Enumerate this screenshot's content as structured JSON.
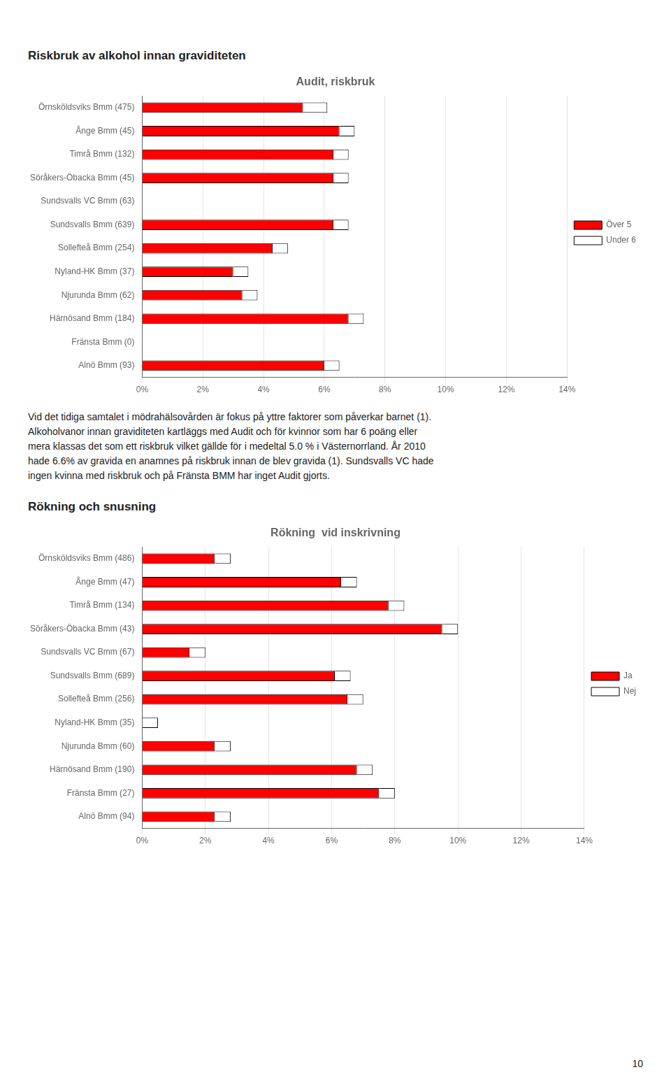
{
  "chart_data": [
    {
      "type": "bar",
      "title": "Audit, riskbruk",
      "orientation": "horizontal",
      "stacked": true,
      "grid": true,
      "legend": "right",
      "categories": [
        "Örnsköldsviks Bmm (475)",
        "Ånge Bmm (45)",
        "Timrå Bmm (132)",
        "Söråkers-Öbacka Bmm (45)",
        "Sundsvalls VC Bmm (63)",
        "Sundsvalls Bmm (639)",
        "Sollefteå Bmm (254)",
        "Nyland-HK Bmm (37)",
        "Njurunda Bmm (62)",
        "Härnösand Bmm (184)",
        "Fränsta Bmm (0)",
        "Alnö Bmm (93)"
      ],
      "series": [
        {
          "name": "Över 5",
          "color": "#FF0000",
          "values": [
            5.3,
            6.5,
            6.3,
            6.3,
            0.0,
            6.3,
            4.3,
            3.0,
            3.3,
            6.8,
            0.0,
            6.0
          ]
        },
        {
          "name": "Under 6",
          "color": "#FFFFFF",
          "values": [
            0.8,
            0.5,
            0.5,
            0.5,
            0.0,
            0.5,
            0.5,
            0.5,
            0.5,
            0.5,
            0.0,
            0.5
          ]
        }
      ],
      "xlim": [
        0,
        14
      ],
      "xticks": [
        {
          "value": 0,
          "label": "0%"
        },
        {
          "value": 2,
          "label": "2%"
        },
        {
          "value": 4,
          "label": "4%"
        },
        {
          "value": 6,
          "label": "6%"
        },
        {
          "value": 8,
          "label": "8%"
        },
        {
          "value": 10,
          "label": "10%"
        },
        {
          "value": 12,
          "label": "12%"
        },
        {
          "value": 14,
          "label": "14%"
        }
      ]
    },
    {
      "type": "bar",
      "title": "Rökning  vid inskrivning",
      "orientation": "horizontal",
      "stacked": true,
      "grid": true,
      "legend": "right",
      "categories": [
        "Örnsköldsviks Bmm (486)",
        "Ånge Bmm (47)",
        "Timrå Bmm (134)",
        "Söråkers-Öbacka Bmm (43)",
        "Sundsvalls VC Bmm (67)",
        "Sundsvalls Bmm (689)",
        "Sollefteå Bmm (256)",
        "Nyland-HK Bmm (35)",
        "Njurunda Bmm (60)",
        "Härnösand Bmm (190)",
        "Fränsta Bmm (27)",
        "Alnö Bmm (94)"
      ],
      "series": [
        {
          "name": "Ja",
          "color": "#FF0000",
          "values": [
            2.3,
            6.3,
            7.8,
            9.5,
            1.5,
            6.1,
            6.5,
            0.0,
            2.3,
            6.8,
            7.5,
            2.3
          ]
        },
        {
          "name": "Nej",
          "color": "#FFFFFF",
          "values": [
            0.5,
            0.5,
            0.5,
            0.5,
            0.5,
            0.5,
            0.5,
            0.5,
            0.5,
            0.5,
            0.5,
            0.5
          ]
        }
      ],
      "xlim": [
        0,
        14
      ],
      "xticks": [
        {
          "value": 0,
          "label": "0%"
        },
        {
          "value": 2,
          "label": "2%"
        },
        {
          "value": 4,
          "label": "4%"
        },
        {
          "value": 6,
          "label": "6%"
        },
        {
          "value": 8,
          "label": "8%"
        },
        {
          "value": 10,
          "label": "10%"
        },
        {
          "value": 12,
          "label": "12%"
        },
        {
          "value": 14,
          "label": "14%"
        }
      ]
    }
  ],
  "section_titles": [
    "Riskbruk av alkohol innan graviditeten",
    "Rökning och snusning"
  ],
  "texts": [
    "Vid det tidiga samtalet i mödrahälsovården är fokus på yttre faktorer som påverkar barnet (1).\nAlkoholvanor innan graviditeten kartläggs med Audit och för kvinnor som har 6 poäng eller\nmera klassas det som ett riskbruk vilket gällde för i medeltal 5.0 % i Västernorrland. År 2010\nhade 6.6% av gravida en anamnes på riskbruk innan de blev gravida (1). Sundsvalls VC hade\ningen kvinna med riskbruk och på Fränsta BMM har inget Audit gjorts."
  ],
  "page_number": "10"
}
